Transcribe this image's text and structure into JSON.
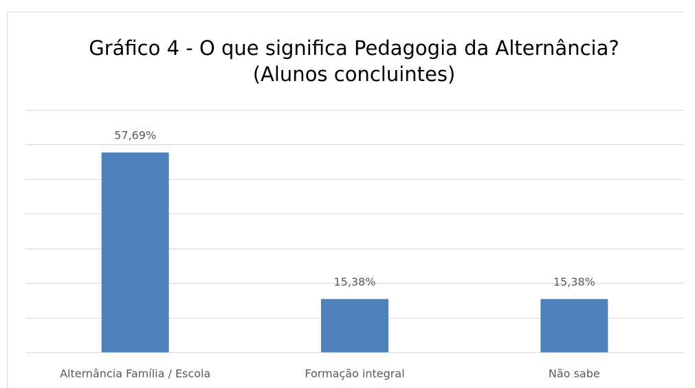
{
  "chart_data": {
    "type": "bar",
    "title": [
      "Gráfico 4 - O que significa Pedagogia da Alternância?",
      "(Alunos concluintes)"
    ],
    "categories": [
      "Alternância Família / Escola",
      "Formação integral",
      "Não sabe"
    ],
    "values": [
      57.69,
      15.38,
      15.38
    ],
    "value_labels": [
      "57,69%",
      "15,38%",
      "15,38%"
    ],
    "color": "#4f81bd",
    "ylim": [
      0,
      70
    ],
    "yticks": [
      0,
      10,
      20,
      30,
      40,
      50,
      60,
      70
    ],
    "grid": true
  }
}
